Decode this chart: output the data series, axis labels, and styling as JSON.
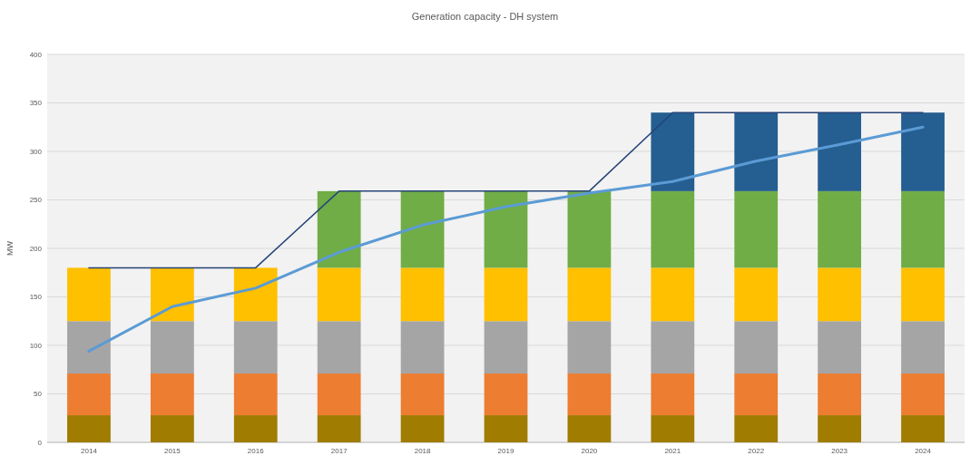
{
  "chart_data": {
    "type": "bar",
    "title": "Generation capacity - DH system",
    "ylabel": "MW",
    "stacked": true,
    "categories": [
      "2014",
      "2015",
      "2016",
      "2017",
      "2018",
      "2019",
      "2020",
      "2021",
      "2022",
      "2023",
      "2024"
    ],
    "ylim": [
      0,
      400
    ],
    "yticks": [
      0,
      50,
      100,
      150,
      200,
      250,
      300,
      350,
      400
    ],
    "grid": "y",
    "series": [
      {
        "color": "#a07c00",
        "values": [
          28,
          28,
          28,
          28,
          28,
          28,
          28,
          28,
          28,
          28,
          28
        ]
      },
      {
        "color": "#ed7d31",
        "values": [
          43,
          43,
          43,
          43,
          43,
          43,
          43,
          43,
          43,
          43,
          43
        ]
      },
      {
        "color": "#a5a5a5",
        "values": [
          54,
          54,
          54,
          54,
          54,
          54,
          54,
          54,
          54,
          54,
          54
        ]
      },
      {
        "color": "#ffc000",
        "values": [
          55,
          55,
          55,
          55,
          55,
          55,
          55,
          55,
          55,
          55,
          55
        ]
      },
      {
        "color": "#70ad47",
        "values": [
          null,
          null,
          null,
          79,
          79,
          79,
          79,
          79,
          79,
          79,
          79
        ]
      },
      {
        "color": "#255e91",
        "values": [
          null,
          null,
          null,
          null,
          null,
          null,
          null,
          81,
          81,
          81,
          81
        ]
      },
      {
        "type": "line",
        "color": "#5b9bd5",
        "values": [
          94,
          140,
          159,
          196,
          224,
          243,
          257,
          269,
          290,
          307,
          325
        ]
      },
      {
        "type": "line",
        "color": "#264478",
        "values": [
          180,
          180,
          180,
          259,
          259,
          259,
          259,
          340,
          340,
          340,
          340
        ]
      }
    ]
  }
}
